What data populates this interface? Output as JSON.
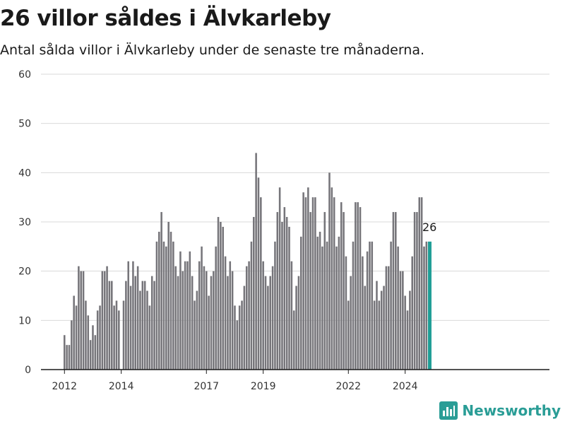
{
  "header": {
    "title": "26 villor såldes i Älvkarleby",
    "subtitle": "Antal sålda villor i Älvkarleby under de senaste tre månaderna."
  },
  "brand": {
    "name": "Newsworthy",
    "icon": "newsworthy-logo-icon",
    "color": "#2a9d96"
  },
  "colors": {
    "bar": "#76757a",
    "highlight": "#1f9e96",
    "grid": "#d9d9d9",
    "axis": "#1a1a1a"
  },
  "chart_data": {
    "type": "bar",
    "title": "26 villor såldes i Älvkarleby",
    "xlabel": "",
    "ylabel": "",
    "ylim": [
      0,
      60
    ],
    "yticks": [
      0,
      10,
      20,
      30,
      40,
      50,
      60
    ],
    "xticks": [
      "2012",
      "2014",
      "2017",
      "2019",
      "2022",
      "2024"
    ],
    "x_start": "2012-01",
    "x_end": "2024-09",
    "grid": true,
    "highlight_label": "26",
    "series": [
      {
        "values": [
          7,
          5,
          5,
          10,
          15,
          13,
          21,
          20,
          20,
          14,
          11,
          6,
          9,
          7,
          12,
          13,
          20,
          20,
          21,
          18,
          18,
          13,
          14,
          12,
          null,
          14,
          18,
          22,
          17,
          22,
          19,
          21,
          16,
          18,
          18,
          16,
          13,
          19,
          18,
          26,
          28,
          32,
          26,
          25,
          30,
          28,
          26,
          21,
          19,
          24,
          20,
          22,
          22,
          24,
          19,
          14,
          16,
          22,
          25,
          21,
          20,
          15,
          19,
          20,
          25,
          31,
          30,
          29,
          23,
          19,
          22,
          20,
          13,
          10,
          13,
          14,
          17,
          21,
          22,
          26,
          31,
          44,
          39,
          35,
          22,
          19,
          17,
          19,
          21,
          26,
          32,
          37,
          30,
          33,
          31,
          29,
          22,
          12,
          17,
          19,
          27,
          36,
          35,
          37,
          32,
          35,
          35,
          27,
          28,
          25,
          32,
          26,
          40,
          37,
          35,
          25,
          27,
          34,
          32,
          23,
          14,
          19,
          26,
          34,
          34,
          33,
          23,
          17,
          24,
          26,
          26,
          14,
          18,
          14,
          16,
          17,
          21,
          21,
          26,
          32,
          32,
          25,
          20,
          20,
          15,
          12,
          16,
          23,
          32,
          32,
          35,
          35,
          25,
          26,
          26
        ]
      }
    ]
  }
}
